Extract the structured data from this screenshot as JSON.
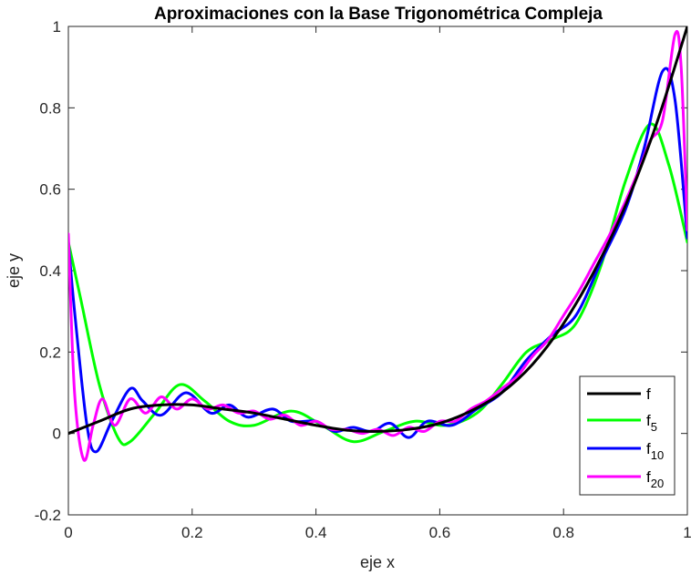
{
  "chart_data": {
    "type": "line",
    "title": "Aproximaciones con la Base Trigonométrica Compleja",
    "xlabel": "eje x",
    "ylabel": "eje y",
    "xlim": [
      0,
      1
    ],
    "ylim": [
      -0.2,
      1
    ],
    "xticks": [
      0,
      0.2,
      0.4,
      0.6,
      0.8,
      1
    ],
    "xtick_labels": [
      "0",
      "0.2",
      "0.4",
      "0.6",
      "0.8",
      "1"
    ],
    "yticks": [
      -0.2,
      0,
      0.2,
      0.4,
      0.6,
      0.8,
      1
    ],
    "ytick_labels": [
      "-0.2",
      "0",
      "0.2",
      "0.4",
      "0.6",
      "0.8",
      "1"
    ],
    "grid": false,
    "legend_position": "bottom-right",
    "series": [
      {
        "name": "f",
        "color": "#000000",
        "x": [
          0,
          0.05,
          0.1,
          0.15,
          0.2,
          0.25,
          0.3,
          0.35,
          0.4,
          0.45,
          0.5,
          0.55,
          0.6,
          0.65,
          0.7,
          0.75,
          0.8,
          0.85,
          0.9,
          0.95,
          1
        ],
        "y": [
          0,
          0.03,
          0.06,
          0.07,
          0.07,
          0.06,
          0.05,
          0.035,
          0.02,
          0.008,
          0.005,
          0.01,
          0.025,
          0.055,
          0.1,
          0.17,
          0.27,
          0.4,
          0.56,
          0.76,
          1
        ]
      },
      {
        "name": "f",
        "legend_sub": "5",
        "color": "#00ff00",
        "x": [
          0,
          0.02,
          0.05,
          0.08,
          0.1,
          0.14,
          0.18,
          0.22,
          0.26,
          0.3,
          0.36,
          0.41,
          0.46,
          0.51,
          0.56,
          0.61,
          0.66,
          0.7,
          0.74,
          0.78,
          0.82,
          0.86,
          0.9,
          0.94,
          0.97,
          1
        ],
        "y": [
          0.47,
          0.33,
          0.12,
          -0.01,
          -0.02,
          0.05,
          0.12,
          0.08,
          0.03,
          0.02,
          0.055,
          0.02,
          -0.02,
          0.005,
          0.03,
          0.02,
          0.05,
          0.12,
          0.2,
          0.23,
          0.27,
          0.41,
          0.62,
          0.76,
          0.66,
          0.47
        ]
      },
      {
        "name": "f",
        "legend_sub": "10",
        "color": "#0000ff",
        "x": [
          0,
          0.01,
          0.03,
          0.045,
          0.07,
          0.1,
          0.12,
          0.15,
          0.19,
          0.23,
          0.26,
          0.29,
          0.33,
          0.36,
          0.4,
          0.43,
          0.46,
          0.49,
          0.52,
          0.55,
          0.58,
          0.62,
          0.66,
          0.7,
          0.74,
          0.78,
          0.82,
          0.86,
          0.9,
          0.93,
          0.96,
          0.98,
          1
        ],
        "y": [
          0.47,
          0.3,
          0.02,
          -0.045,
          0.03,
          0.11,
          0.08,
          0.045,
          0.1,
          0.05,
          0.07,
          0.04,
          0.06,
          0.03,
          0.03,
          0.005,
          0.015,
          0.005,
          0.025,
          -0.01,
          0.03,
          0.02,
          0.06,
          0.1,
          0.18,
          0.24,
          0.29,
          0.42,
          0.55,
          0.7,
          0.89,
          0.82,
          0.48
        ]
      },
      {
        "name": "f",
        "legend_sub": "20",
        "color": "#ff00ff",
        "x": [
          0,
          0.01,
          0.025,
          0.04,
          0.055,
          0.075,
          0.1,
          0.125,
          0.15,
          0.175,
          0.2,
          0.225,
          0.25,
          0.275,
          0.3,
          0.325,
          0.35,
          0.375,
          0.4,
          0.425,
          0.45,
          0.475,
          0.5,
          0.525,
          0.55,
          0.575,
          0.6,
          0.625,
          0.65,
          0.675,
          0.7,
          0.725,
          0.75,
          0.775,
          0.8,
          0.825,
          0.85,
          0.875,
          0.9,
          0.925,
          0.94,
          0.96,
          0.98,
          0.99,
          1
        ],
        "y": [
          0.49,
          0.1,
          -0.065,
          0.02,
          0.085,
          0.02,
          0.085,
          0.05,
          0.09,
          0.06,
          0.085,
          0.06,
          0.07,
          0.05,
          0.055,
          0.035,
          0.045,
          0.02,
          0.03,
          0.01,
          0.01,
          0.0,
          0.01,
          -0.005,
          0.015,
          0.005,
          0.03,
          0.03,
          0.06,
          0.08,
          0.11,
          0.14,
          0.19,
          0.23,
          0.29,
          0.35,
          0.42,
          0.49,
          0.57,
          0.66,
          0.72,
          0.77,
          0.98,
          0.9,
          0.5
        ]
      }
    ]
  }
}
